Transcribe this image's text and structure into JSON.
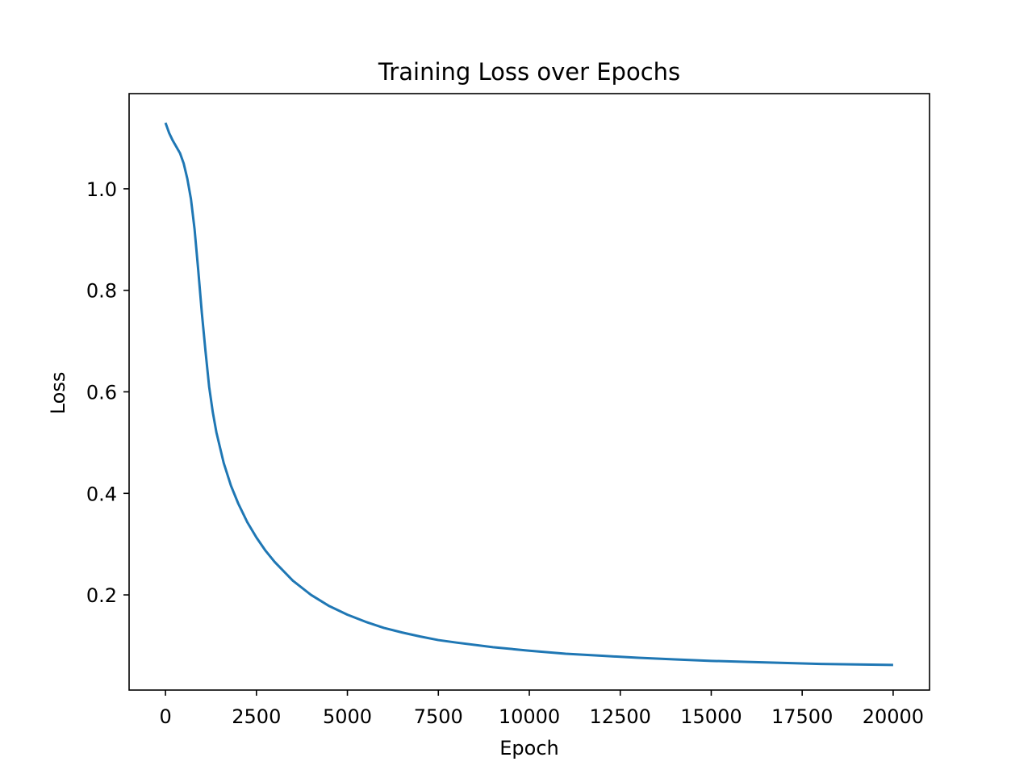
{
  "chart_data": {
    "type": "line",
    "title": "Training Loss over Epochs",
    "xlabel": "Epoch",
    "ylabel": "Loss",
    "xlim": [
      -1000,
      21000
    ],
    "ylim": [
      0.0125,
      1.1875
    ],
    "xticks": [
      0,
      2500,
      5000,
      7500,
      10000,
      12500,
      15000,
      17500,
      20000
    ],
    "xtick_labels": [
      "0",
      "2500",
      "5000",
      "7500",
      "10000",
      "12500",
      "15000",
      "17500",
      "20000"
    ],
    "yticks": [
      0.2,
      0.4,
      0.6,
      0.8,
      1.0
    ],
    "ytick_labels": [
      "0.2",
      "0.4",
      "0.6",
      "0.8",
      "1.0"
    ],
    "grid": false,
    "legend": "none",
    "line_color": "#1f77b4",
    "series": [
      {
        "x": [
          0,
          100,
          200,
          400,
          500,
          600,
          700,
          800,
          900,
          1000,
          1100,
          1200,
          1300,
          1400,
          1500,
          1600,
          1800,
          2000,
          2250,
          2500,
          2750,
          3000,
          3500,
          4000,
          4500,
          5000,
          5500,
          6000,
          6500,
          7000,
          7500,
          8000,
          9000,
          10000,
          11000,
          12000,
          13000,
          14000,
          15000,
          16000,
          17000,
          18000,
          19000,
          20000
        ],
        "y": [
          1.13,
          1.11,
          1.095,
          1.07,
          1.05,
          1.02,
          0.98,
          0.92,
          0.84,
          0.755,
          0.68,
          0.61,
          0.56,
          0.52,
          0.49,
          0.46,
          0.415,
          0.38,
          0.343,
          0.313,
          0.287,
          0.265,
          0.228,
          0.2,
          0.178,
          0.161,
          0.147,
          0.135,
          0.126,
          0.118,
          0.111,
          0.106,
          0.097,
          0.09,
          0.084,
          0.08,
          0.076,
          0.073,
          0.07,
          0.068,
          0.066,
          0.064,
          0.063,
          0.062
        ]
      }
    ]
  }
}
